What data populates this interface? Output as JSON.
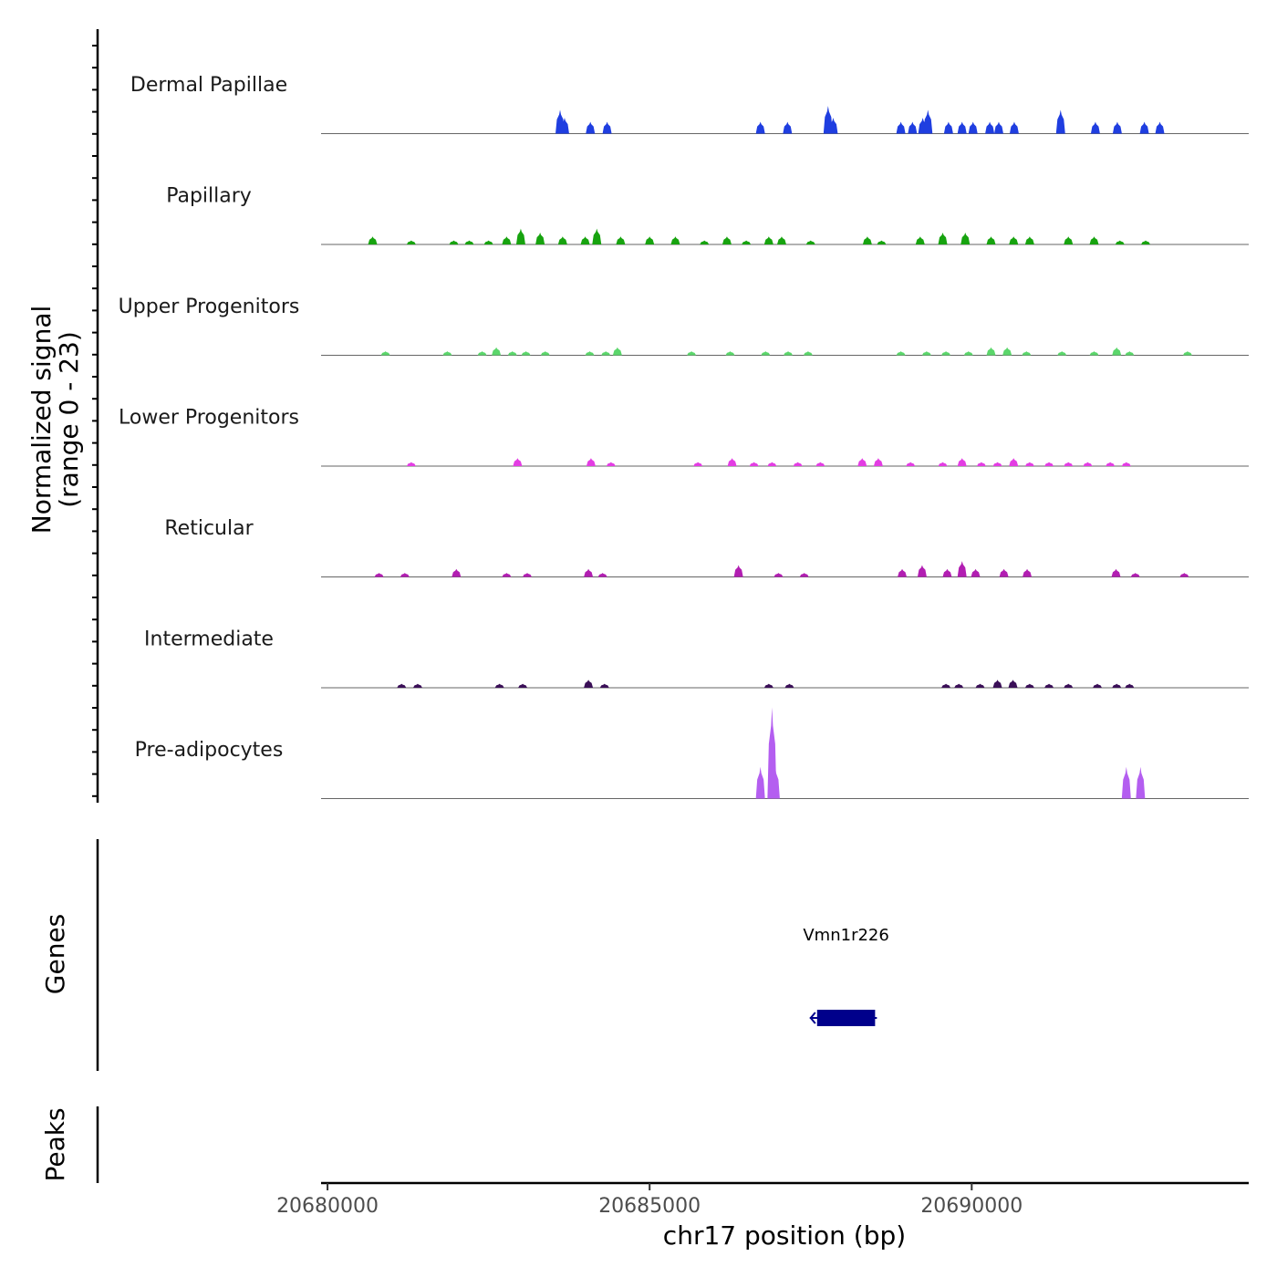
{
  "chart_data": {
    "type": "area",
    "title": "",
    "ylabel": "Normalized signal",
    "ylabel_range": "(range 0 - 23)",
    "ylim": [
      0,
      23
    ],
    "xlabel": "chr17 position (bp)",
    "xlim": [
      20679900,
      20694300
    ],
    "xticks": [
      20680000,
      20685000,
      20690000
    ],
    "xtick_labels": [
      "20680000",
      "20685000",
      "20690000"
    ],
    "tracks": [
      {
        "name": "Dermal Papillae",
        "color": "#1f3ee0",
        "peaks": [
          [
            20683610,
            6
          ],
          [
            20683680,
            4
          ],
          [
            20684080,
            3
          ],
          [
            20684340,
            3
          ],
          [
            20686720,
            3
          ],
          [
            20687140,
            3
          ],
          [
            20687770,
            7
          ],
          [
            20687850,
            4
          ],
          [
            20688900,
            3
          ],
          [
            20689080,
            3
          ],
          [
            20689240,
            4
          ],
          [
            20689320,
            6
          ],
          [
            20689640,
            3
          ],
          [
            20689850,
            3
          ],
          [
            20690020,
            3
          ],
          [
            20690280,
            3
          ],
          [
            20690420,
            3
          ],
          [
            20690660,
            3
          ],
          [
            20691380,
            6
          ],
          [
            20691920,
            3
          ],
          [
            20692260,
            3
          ],
          [
            20692680,
            3
          ],
          [
            20692920,
            3
          ]
        ]
      },
      {
        "name": "Papillary",
        "color": "#17a30f",
        "peaks": [
          [
            20680700,
            2
          ],
          [
            20681300,
            1
          ],
          [
            20681960,
            1
          ],
          [
            20682200,
            1
          ],
          [
            20682500,
            1
          ],
          [
            20682780,
            2
          ],
          [
            20683000,
            4
          ],
          [
            20683300,
            3
          ],
          [
            20683650,
            2
          ],
          [
            20684000,
            2
          ],
          [
            20684180,
            4
          ],
          [
            20684550,
            2
          ],
          [
            20685000,
            2
          ],
          [
            20685400,
            2
          ],
          [
            20685850,
            1
          ],
          [
            20686200,
            2
          ],
          [
            20686500,
            1
          ],
          [
            20686850,
            2
          ],
          [
            20687050,
            2
          ],
          [
            20687500,
            1
          ],
          [
            20688380,
            2
          ],
          [
            20688600,
            1
          ],
          [
            20689200,
            2
          ],
          [
            20689550,
            3
          ],
          [
            20689900,
            3
          ],
          [
            20690300,
            2
          ],
          [
            20690650,
            2
          ],
          [
            20690900,
            2
          ],
          [
            20691500,
            2
          ],
          [
            20691900,
            2
          ],
          [
            20692300,
            1
          ],
          [
            20692700,
            1
          ]
        ]
      },
      {
        "name": "Upper Progenitors",
        "color": "#5bd66b",
        "peaks": [
          [
            20680900,
            1
          ],
          [
            20681860,
            1
          ],
          [
            20682400,
            1
          ],
          [
            20682620,
            2
          ],
          [
            20682870,
            1
          ],
          [
            20683080,
            1
          ],
          [
            20683380,
            1
          ],
          [
            20684070,
            1
          ],
          [
            20684320,
            1
          ],
          [
            20684500,
            2
          ],
          [
            20685650,
            1
          ],
          [
            20686250,
            1
          ],
          [
            20686800,
            1
          ],
          [
            20687150,
            1
          ],
          [
            20687460,
            1
          ],
          [
            20688900,
            1
          ],
          [
            20689300,
            1
          ],
          [
            20689600,
            1
          ],
          [
            20689950,
            1
          ],
          [
            20690300,
            2
          ],
          [
            20690550,
            2
          ],
          [
            20690850,
            1
          ],
          [
            20691400,
            1
          ],
          [
            20691900,
            1
          ],
          [
            20692250,
            2
          ],
          [
            20692450,
            1
          ],
          [
            20693350,
            1
          ]
        ]
      },
      {
        "name": "Lower Progenitors",
        "color": "#e33de3",
        "peaks": [
          [
            20681300,
            1
          ],
          [
            20682950,
            2
          ],
          [
            20684090,
            2
          ],
          [
            20684400,
            1
          ],
          [
            20685750,
            1
          ],
          [
            20686280,
            2
          ],
          [
            20686620,
            1
          ],
          [
            20686900,
            1
          ],
          [
            20687300,
            1
          ],
          [
            20687650,
            1
          ],
          [
            20688300,
            2
          ],
          [
            20688550,
            2
          ],
          [
            20689050,
            1
          ],
          [
            20689550,
            1
          ],
          [
            20689850,
            2
          ],
          [
            20690150,
            1
          ],
          [
            20690400,
            1
          ],
          [
            20690650,
            2
          ],
          [
            20690900,
            1
          ],
          [
            20691200,
            1
          ],
          [
            20691500,
            1
          ],
          [
            20691800,
            1
          ],
          [
            20692150,
            1
          ],
          [
            20692400,
            1
          ]
        ]
      },
      {
        "name": "Reticular",
        "color": "#b21eb2",
        "peaks": [
          [
            20680800,
            1
          ],
          [
            20681200,
            1
          ],
          [
            20682000,
            2
          ],
          [
            20682780,
            1
          ],
          [
            20683100,
            1
          ],
          [
            20684050,
            2
          ],
          [
            20684270,
            1
          ],
          [
            20686380,
            3
          ],
          [
            20687000,
            1
          ],
          [
            20687400,
            1
          ],
          [
            20688920,
            2
          ],
          [
            20689230,
            3
          ],
          [
            20689620,
            2
          ],
          [
            20689850,
            4
          ],
          [
            20690060,
            2
          ],
          [
            20690500,
            2
          ],
          [
            20690860,
            2
          ],
          [
            20692240,
            2
          ],
          [
            20692540,
            1
          ],
          [
            20693300,
            1
          ]
        ]
      },
      {
        "name": "Intermediate",
        "color": "#3a0f57",
        "peaks": [
          [
            20681150,
            1
          ],
          [
            20681400,
            1
          ],
          [
            20682670,
            1
          ],
          [
            20683030,
            1
          ],
          [
            20684050,
            2
          ],
          [
            20684300,
            1
          ],
          [
            20686850,
            1
          ],
          [
            20687170,
            1
          ],
          [
            20689600,
            1
          ],
          [
            20689800,
            1
          ],
          [
            20690130,
            1
          ],
          [
            20690400,
            2
          ],
          [
            20690640,
            2
          ],
          [
            20690900,
            1
          ],
          [
            20691200,
            1
          ],
          [
            20691500,
            1
          ],
          [
            20691950,
            1
          ],
          [
            20692250,
            1
          ],
          [
            20692450,
            1
          ]
        ]
      },
      {
        "name": "Pre-adipocytes",
        "color": "#b45ef0",
        "peaks": [
          [
            20686720,
            8
          ],
          [
            20686900,
            23
          ],
          [
            20686950,
            8
          ],
          [
            20692400,
            8
          ],
          [
            20692620,
            8
          ]
        ]
      }
    ],
    "genes_label": "Genes",
    "genes": [
      {
        "name": "Vmn1r226",
        "start": 20687600,
        "end": 20688500,
        "strand": "-",
        "color": "#00008b"
      }
    ],
    "peaks_label": "Peaks"
  }
}
